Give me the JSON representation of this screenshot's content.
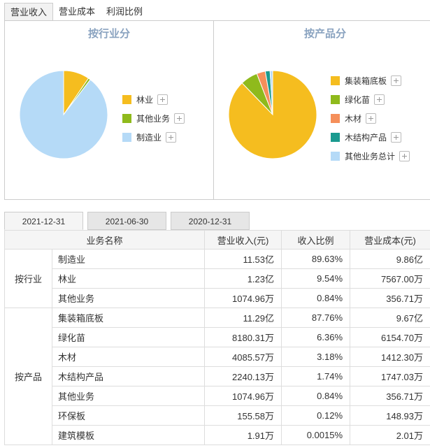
{
  "top_tabs": [
    "营业收入",
    "营业成本",
    "利润比例"
  ],
  "industry_panel": {
    "title": "按行业分",
    "legend": [
      {
        "label": "林业",
        "color": "#f5bd1f"
      },
      {
        "label": "其他业务",
        "color": "#8fba1c"
      },
      {
        "label": "制造业",
        "color": "#b5daf7"
      }
    ]
  },
  "product_panel": {
    "title": "按产品分",
    "legend": [
      {
        "label": "集装箱底板",
        "color": "#f5bd1f"
      },
      {
        "label": "绿化苗",
        "color": "#8fba1c"
      },
      {
        "label": "木材",
        "color": "#f58f5a"
      },
      {
        "label": "木结构产品",
        "color": "#1a9a8f"
      },
      {
        "label": "其他业务总计",
        "color": "#b5daf7"
      }
    ]
  },
  "chart_data": [
    {
      "type": "pie",
      "title": "按行业分",
      "slices": [
        {
          "label": "林业",
          "value": 9.54,
          "color": "#f5bd1f"
        },
        {
          "label": "其他业务",
          "value": 0.84,
          "color": "#8fba1c"
        },
        {
          "label": "制造业",
          "value": 89.63,
          "color": "#b5daf7"
        }
      ]
    },
    {
      "type": "pie",
      "title": "按产品分",
      "slices": [
        {
          "label": "集装箱底板",
          "value": 87.76,
          "color": "#f5bd1f"
        },
        {
          "label": "绿化苗",
          "value": 6.36,
          "color": "#8fba1c"
        },
        {
          "label": "木材",
          "value": 3.18,
          "color": "#f58f5a"
        },
        {
          "label": "木结构产品",
          "value": 1.74,
          "color": "#1a9a8f"
        },
        {
          "label": "其他业务总计",
          "value": 0.96,
          "color": "#b5daf7"
        }
      ]
    }
  ],
  "date_tabs": [
    "2021-12-31",
    "2021-06-30",
    "2020-12-31"
  ],
  "table": {
    "headers": [
      "业务名称",
      "营业收入(元)",
      "收入比例",
      "营业成本(元)"
    ],
    "groups": [
      {
        "name": "按行业",
        "rows": [
          {
            "name": "制造业",
            "revenue": "11.53亿",
            "ratio": "89.63%",
            "cost": "9.86亿"
          },
          {
            "name": "林业",
            "revenue": "1.23亿",
            "ratio": "9.54%",
            "cost": "7567.00万"
          },
          {
            "name": "其他业务",
            "revenue": "1074.96万",
            "ratio": "0.84%",
            "cost": "356.71万"
          }
        ]
      },
      {
        "name": "按产品",
        "rows": [
          {
            "name": "集装箱底板",
            "revenue": "11.29亿",
            "ratio": "87.76%",
            "cost": "9.67亿"
          },
          {
            "name": "绿化苗",
            "revenue": "8180.31万",
            "ratio": "6.36%",
            "cost": "6154.70万"
          },
          {
            "name": "木材",
            "revenue": "4085.57万",
            "ratio": "3.18%",
            "cost": "1412.30万"
          },
          {
            "name": "木结构产品",
            "revenue": "2240.13万",
            "ratio": "1.74%",
            "cost": "1747.03万"
          },
          {
            "name": "其他业务",
            "revenue": "1074.96万",
            "ratio": "0.84%",
            "cost": "356.71万"
          },
          {
            "name": "环保板",
            "revenue": "155.58万",
            "ratio": "0.12%",
            "cost": "148.93万"
          },
          {
            "name": "建筑模板",
            "revenue": "1.91万",
            "ratio": "0.0015%",
            "cost": "2.01万"
          }
        ]
      }
    ]
  }
}
